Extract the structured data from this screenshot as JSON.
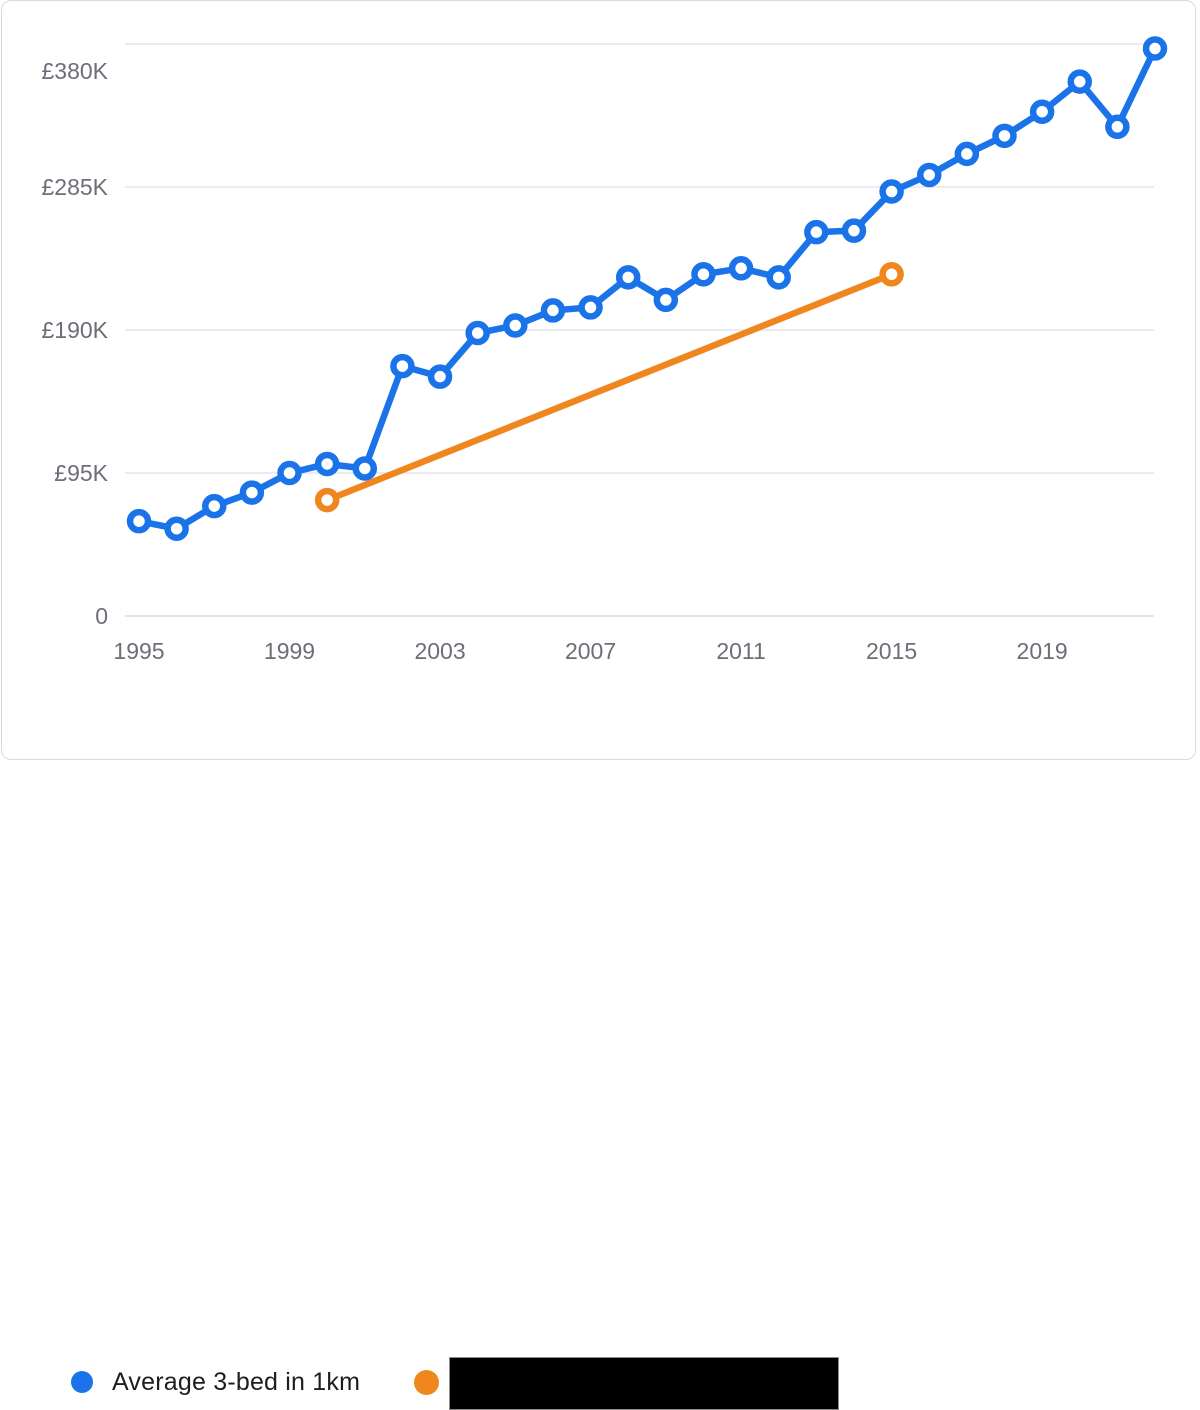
{
  "legend": {
    "items": [
      {
        "label": "Average 3-bed in 1km",
        "color": "#1a73e8",
        "redacted": false
      },
      {
        "label": "",
        "color": "#f0861e",
        "redacted": true
      }
    ]
  },
  "colors": {
    "series_blue": "#1a73e8",
    "series_orange": "#f0861e",
    "gridline": "#e9ecf3",
    "zero_line": "#e1e5ec",
    "axis_text": "#6e6e78",
    "legend_text": "#1e1e22",
    "redaction": "#000000"
  },
  "chart_data": {
    "type": "line",
    "title": "",
    "currency": "GBP",
    "grid": true,
    "legend_position": "bottom",
    "x_range": [
      1995,
      2022
    ],
    "y_range": [
      0,
      400000
    ],
    "x_ticks": [
      "1995",
      "1999",
      "2003",
      "2007",
      "2011",
      "2015",
      "2019"
    ],
    "y_ticks": [
      {
        "label": "0",
        "value": 0
      },
      {
        "label": "£95K",
        "value": 95000
      },
      {
        "label": "£190K",
        "value": 190000
      },
      {
        "label": "£285K",
        "value": 285000
      },
      {
        "label": "£380K",
        "value": 380000
      }
    ],
    "series": [
      {
        "name": "Average 3-bed in 1km",
        "redacted": false,
        "color": "#1a73e8",
        "markers": "all",
        "x": [
          1995,
          1996,
          1997,
          1998,
          1999,
          2000,
          2001,
          2002,
          2003,
          2004,
          2005,
          2006,
          2007,
          2008,
          2009,
          2010,
          2011,
          2012,
          2013,
          2014,
          2015,
          2016,
          2017,
          2018,
          2019,
          2020,
          2021,
          2022
        ],
        "values": [
          63000,
          58000,
          73000,
          82000,
          95000,
          101000,
          98000,
          166000,
          159000,
          188000,
          193000,
          203000,
          205000,
          225000,
          210000,
          227000,
          231000,
          225000,
          255000,
          256000,
          282000,
          293000,
          307000,
          319000,
          335000,
          355000,
          325000,
          377000
        ]
      },
      {
        "name": "",
        "redacted": true,
        "color": "#f0861e",
        "markers": "ends",
        "x": [
          2000,
          2015
        ],
        "values": [
          77000,
          227000
        ]
      }
    ]
  }
}
